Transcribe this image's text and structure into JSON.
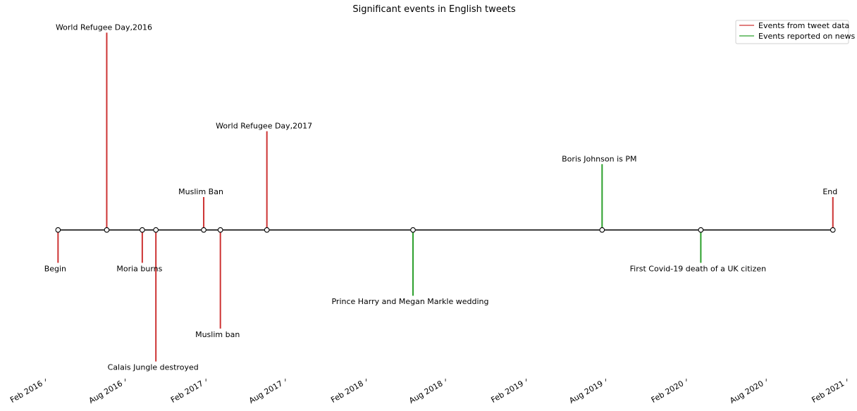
{
  "chart_data": {
    "type": "timeline",
    "title": "Significant events in English tweets",
    "xlabel": "",
    "ylabel": "",
    "xlim": [
      "2016-01-01",
      "2021-01-10"
    ],
    "ylim": [
      -4.2,
      6.2
    ],
    "grid": false,
    "legend": {
      "position": "top-right",
      "entries": [
        {
          "label": "Events from tweet data",
          "color": "#cd3333"
        },
        {
          "label": "Events reported on news",
          "color": "#2ca02c"
        }
      ]
    },
    "x_ticks": [
      {
        "date": "2016-02-01",
        "label": "Feb 2016"
      },
      {
        "date": "2016-08-01",
        "label": "Aug 2016"
      },
      {
        "date": "2017-02-01",
        "label": "Feb 2017"
      },
      {
        "date": "2017-08-01",
        "label": "Aug 2017"
      },
      {
        "date": "2018-02-01",
        "label": "Feb 2018"
      },
      {
        "date": "2018-08-01",
        "label": "Aug 2018"
      },
      {
        "date": "2019-02-01",
        "label": "Feb 2019"
      },
      {
        "date": "2019-08-01",
        "label": "Aug 2019"
      },
      {
        "date": "2020-02-01",
        "label": "Feb 2020"
      },
      {
        "date": "2020-08-01",
        "label": "Aug 2020"
      },
      {
        "date": "2021-02-01",
        "label": "Feb 2021"
      }
    ],
    "events": [
      {
        "date": "2016-03-01",
        "level": -1,
        "label": "Begin",
        "source": "tweet"
      },
      {
        "date": "2016-06-20",
        "level": 6,
        "label": "World Refugee Day,2016",
        "source": "tweet"
      },
      {
        "date": "2016-09-09",
        "level": -1,
        "label": "Moria burns",
        "source": "tweet"
      },
      {
        "date": "2016-10-10",
        "level": -4,
        "label": "Calais Jungle destroyed",
        "source": "tweet"
      },
      {
        "date": "2017-01-27",
        "level": 1,
        "label": "Muslim Ban",
        "source": "tweet"
      },
      {
        "date": "2017-03-06",
        "level": -3,
        "label": "Muslim ban",
        "source": "tweet"
      },
      {
        "date": "2017-06-20",
        "level": 3,
        "label": "World Refugee Day,2017",
        "source": "tweet"
      },
      {
        "date": "2018-05-19",
        "level": -2,
        "label": "Prince Harry and Megan Markle wedding",
        "source": "news"
      },
      {
        "date": "2019-07-24",
        "level": 2,
        "label": "Boris Johnson is PM",
        "source": "news"
      },
      {
        "date": "2020-03-05",
        "level": -1,
        "label": "First Covid-19 death of a UK citizen",
        "source": "news"
      },
      {
        "date": "2020-12-31",
        "level": 1,
        "label": "End",
        "source": "tweet"
      }
    ]
  }
}
